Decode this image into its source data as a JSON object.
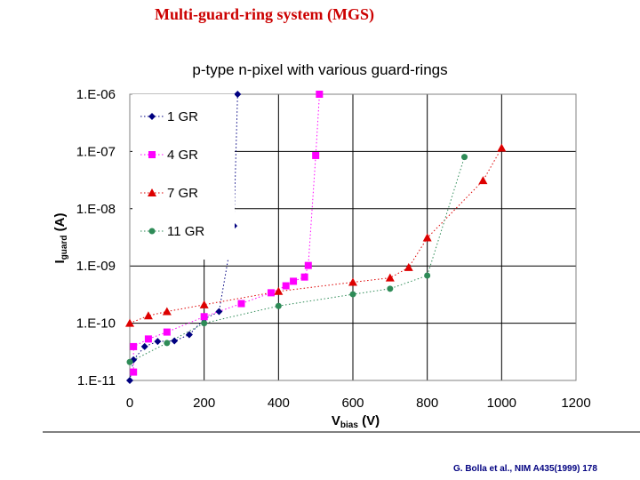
{
  "slide": {
    "title": "Multi-guard-ring system (MGS)",
    "citation": "G. Bolla et al., NIM A435(1999) 178"
  },
  "colors": {
    "title": "#cc0000",
    "citation": "#000080",
    "series": [
      "#000080",
      "#ff00ff",
      "#dd0000",
      "#2e8b57"
    ]
  },
  "chart_data": {
    "type": "scatter",
    "title": "p-type n-pixel with various guard-rings",
    "xlabel": "Vbias (V)",
    "xlabel_parts": {
      "main": "V",
      "sub": "bias",
      "unit": " (V)"
    },
    "ylabel": "Iguard (A)",
    "ylabel_parts": {
      "main": "I",
      "sub": "guard",
      "unit": " (A)"
    },
    "xlim": [
      0,
      1200
    ],
    "ylim": [
      1e-11,
      1e-06
    ],
    "yscale": "log",
    "x_ticks": [
      "0",
      "200",
      "400",
      "600",
      "800",
      "1000",
      "1200"
    ],
    "y_ticks": [
      "1.E-11",
      "1.E-10",
      "1.E-09",
      "1.E-08",
      "1.E-07",
      "1.E-06"
    ],
    "grid": true,
    "legend_position": "top-left",
    "series": [
      {
        "name": "1 GR",
        "marker": "diamond",
        "x": [
          0,
          10,
          40,
          75,
          120,
          160,
          200,
          240,
          280,
          290
        ],
        "y": [
          1e-11,
          2.3e-11,
          3.9e-11,
          4.8e-11,
          4.9e-11,
          6.3e-11,
          1.18e-10,
          1.6e-10,
          5e-09,
          1e-06
        ]
      },
      {
        "name": "4 GR",
        "marker": "square",
        "x": [
          10,
          10,
          50,
          100,
          200,
          300,
          380,
          420,
          440,
          470,
          480,
          500,
          510
        ],
        "y": [
          1.4e-11,
          3.9e-11,
          5.3e-11,
          7e-11,
          1.3e-10,
          2.2e-10,
          3.4e-10,
          4.5e-10,
          5.4e-10,
          6.4e-10,
          1.02e-09,
          8.5e-08,
          1e-06
        ]
      },
      {
        "name": "7 GR",
        "marker": "triangle",
        "x": [
          0,
          50,
          100,
          200,
          400,
          600,
          700,
          750,
          800,
          950,
          1000
        ],
        "y": [
          1e-10,
          1.35e-10,
          1.6e-10,
          2.1e-10,
          3.6e-10,
          5.2e-10,
          6.2e-10,
          9.4e-10,
          3.1e-09,
          3.1e-08,
          1.15e-07
        ]
      },
      {
        "name": "11 GR",
        "marker": "circle",
        "x": [
          0,
          100,
          200,
          400,
          600,
          700,
          800,
          900
        ],
        "y": [
          2.1e-11,
          4.5e-11,
          1e-10,
          2e-10,
          3.2e-10,
          4e-10,
          6.8e-10,
          8e-08
        ]
      }
    ]
  }
}
